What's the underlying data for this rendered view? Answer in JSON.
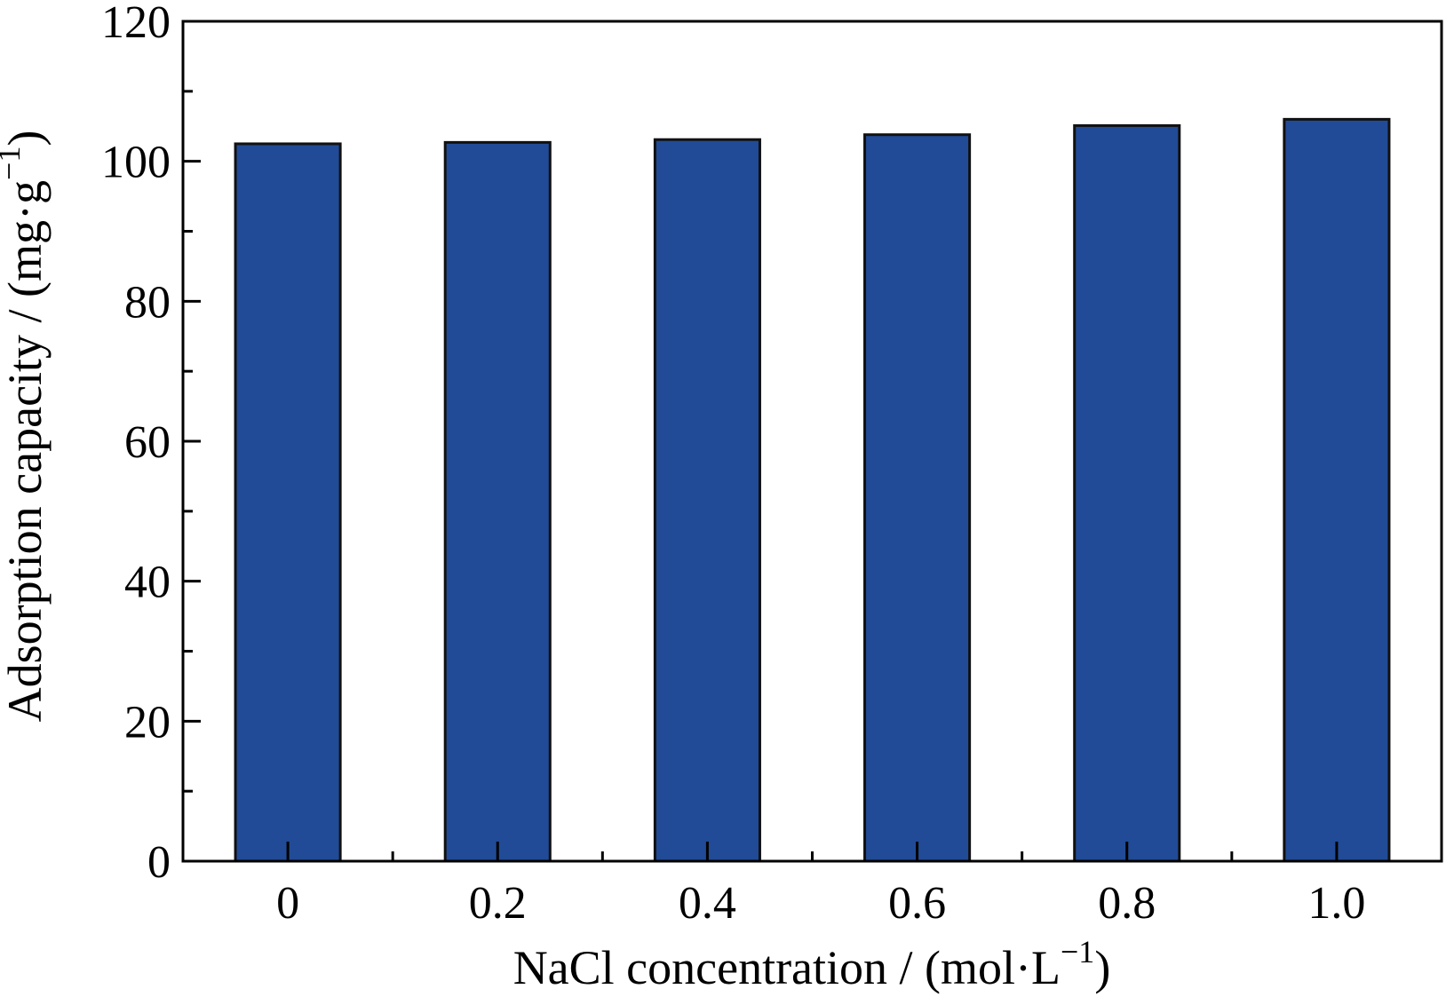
{
  "chart_data": {
    "type": "bar",
    "categories": [
      "0",
      "0.2",
      "0.4",
      "0.6",
      "0.8",
      "1.0"
    ],
    "values": [
      102.5,
      102.7,
      103.1,
      103.8,
      105.1,
      106.0
    ],
    "title": "",
    "xlabel": {
      "main": "NaCl concentration / (mol·L",
      "sup": "−1",
      "close": ")"
    },
    "ylabel": {
      "main": "Adsorption capacity / (mg·g",
      "sup": "−1",
      "close": ")"
    },
    "ylim": [
      0,
      120
    ],
    "yticks_major": [
      0,
      20,
      40,
      60,
      80,
      100,
      120
    ],
    "yticks_minor_step": 10,
    "grid": false,
    "colors": {
      "bar_fill": "#214b96",
      "bar_edge": "#111111",
      "axis": "#000000"
    }
  }
}
